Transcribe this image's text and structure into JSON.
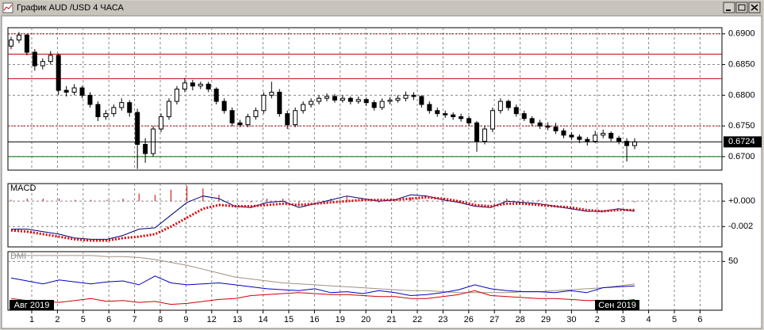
{
  "window": {
    "title": "График AUD /USD  4 ЧАСА"
  },
  "x_axis": {
    "categories": [
      "1",
      "2",
      "5",
      "6",
      "7",
      "8",
      "9",
      "12",
      "13",
      "14",
      "15",
      "16",
      "19",
      "20",
      "21",
      "22",
      "23",
      "26",
      "27",
      "28",
      "29",
      "30",
      "2",
      "3",
      "4",
      "5",
      "6"
    ],
    "months": [
      "Авг 2019",
      "Сен 2019"
    ]
  },
  "chart_data": [
    {
      "type": "candlestick",
      "ylim": [
        0.6678,
        0.691
      ],
      "yticks": [
        {
          "value": 0.69,
          "label": "0.6900"
        },
        {
          "value": 0.685,
          "label": "0.6850"
        },
        {
          "value": 0.68,
          "label": "0.6800"
        },
        {
          "value": 0.675,
          "label": "0.6750"
        },
        {
          "value": 0.67,
          "label": "0.6700"
        }
      ],
      "grid": true,
      "up_color": "#ffffff",
      "down_color": "#000000",
      "last_price": {
        "value": 0.6724,
        "label": "0.6724"
      },
      "levels": [
        {
          "value": 0.69,
          "color": "#b00000",
          "dash": true
        },
        {
          "value": 0.6867,
          "color": "#c00000",
          "dash": false
        },
        {
          "value": 0.6827,
          "color": "#c00000",
          "dash": false
        },
        {
          "value": 0.675,
          "color": "#c00000",
          "dash": true
        },
        {
          "value": 0.67,
          "color": "#007000",
          "dash": false
        }
      ],
      "ohlc": [
        [
          0.688,
          0.6895,
          0.6875,
          0.689
        ],
        [
          0.689,
          0.6903,
          0.6885,
          0.6898
        ],
        [
          0.6898,
          0.69,
          0.6865,
          0.687
        ],
        [
          0.687,
          0.6875,
          0.684,
          0.6848
        ],
        [
          0.6848,
          0.686,
          0.6842,
          0.6855
        ],
        [
          0.6855,
          0.6872,
          0.685,
          0.6865
        ],
        [
          0.6865,
          0.6868,
          0.68,
          0.6808
        ],
        [
          0.6808,
          0.6815,
          0.6798,
          0.6805
        ],
        [
          0.6805,
          0.6818,
          0.68,
          0.6812
        ],
        [
          0.6812,
          0.6815,
          0.6795,
          0.68
        ],
        [
          0.68,
          0.6805,
          0.678,
          0.6785
        ],
        [
          0.6785,
          0.679,
          0.6758,
          0.6765
        ],
        [
          0.6765,
          0.6776,
          0.676,
          0.677
        ],
        [
          0.677,
          0.6785,
          0.6765,
          0.678
        ],
        [
          0.678,
          0.6795,
          0.6775,
          0.6788
        ],
        [
          0.6788,
          0.6792,
          0.6765,
          0.6772
        ],
        [
          0.6772,
          0.6778,
          0.668,
          0.672
        ],
        [
          0.672,
          0.673,
          0.669,
          0.6705
        ],
        [
          0.6705,
          0.675,
          0.67,
          0.6745
        ],
        [
          0.6745,
          0.677,
          0.674,
          0.6765
        ],
        [
          0.6765,
          0.6795,
          0.676,
          0.679
        ],
        [
          0.679,
          0.6815,
          0.6785,
          0.681
        ],
        [
          0.681,
          0.6828,
          0.6805,
          0.682
        ],
        [
          0.682,
          0.6825,
          0.6808,
          0.6815
        ],
        [
          0.6815,
          0.6822,
          0.681,
          0.6818
        ],
        [
          0.6818,
          0.6822,
          0.6805,
          0.681
        ],
        [
          0.681,
          0.6813,
          0.6785,
          0.679
        ],
        [
          0.679,
          0.6795,
          0.677,
          0.6775
        ],
        [
          0.6775,
          0.678,
          0.675,
          0.6755
        ],
        [
          0.6755,
          0.676,
          0.6748,
          0.6752
        ],
        [
          0.6752,
          0.677,
          0.6748,
          0.6765
        ],
        [
          0.6765,
          0.678,
          0.676,
          0.6775
        ],
        [
          0.6775,
          0.6805,
          0.677,
          0.68
        ],
        [
          0.68,
          0.6822,
          0.6795,
          0.6805
        ],
        [
          0.6805,
          0.681,
          0.6765,
          0.677
        ],
        [
          0.677,
          0.6775,
          0.6745,
          0.6752
        ],
        [
          0.6752,
          0.678,
          0.6748,
          0.6775
        ],
        [
          0.6775,
          0.679,
          0.677,
          0.6785
        ],
        [
          0.6785,
          0.6795,
          0.678,
          0.679
        ],
        [
          0.679,
          0.68,
          0.6785,
          0.6795
        ],
        [
          0.6795,
          0.6803,
          0.679,
          0.6798
        ],
        [
          0.6798,
          0.6802,
          0.6788,
          0.6792
        ],
        [
          0.6792,
          0.68,
          0.6788,
          0.6795
        ],
        [
          0.6795,
          0.6798,
          0.6785,
          0.679
        ],
        [
          0.679,
          0.6798,
          0.6786,
          0.6793
        ],
        [
          0.6793,
          0.6796,
          0.6783,
          0.6788
        ],
        [
          0.6788,
          0.6792,
          0.6775,
          0.678
        ],
        [
          0.678,
          0.6795,
          0.6776,
          0.679
        ],
        [
          0.679,
          0.6797,
          0.6785,
          0.6792
        ],
        [
          0.6792,
          0.68,
          0.6788,
          0.6795
        ],
        [
          0.6795,
          0.6806,
          0.679,
          0.68
        ],
        [
          0.68,
          0.6805,
          0.6792,
          0.6798
        ],
        [
          0.6798,
          0.68,
          0.678,
          0.6785
        ],
        [
          0.6785,
          0.679,
          0.677,
          0.6775
        ],
        [
          0.6775,
          0.678,
          0.6765,
          0.677
        ],
        [
          0.677,
          0.6775,
          0.6763,
          0.6768
        ],
        [
          0.6768,
          0.6772,
          0.676,
          0.6765
        ],
        [
          0.6765,
          0.677,
          0.6757,
          0.6762
        ],
        [
          0.6762,
          0.6766,
          0.675,
          0.6755
        ],
        [
          0.6755,
          0.6758,
          0.6708,
          0.6725
        ],
        [
          0.6725,
          0.675,
          0.672,
          0.6745
        ],
        [
          0.6745,
          0.678,
          0.674,
          0.6775
        ],
        [
          0.6775,
          0.6795,
          0.677,
          0.679
        ],
        [
          0.679,
          0.6793,
          0.6775,
          0.678
        ],
        [
          0.678,
          0.6785,
          0.6765,
          0.677
        ],
        [
          0.677,
          0.6775,
          0.6758,
          0.6762
        ],
        [
          0.6762,
          0.6766,
          0.675,
          0.6755
        ],
        [
          0.6755,
          0.676,
          0.6745,
          0.675
        ],
        [
          0.675,
          0.6756,
          0.6743,
          0.6748
        ],
        [
          0.6748,
          0.6755,
          0.6737,
          0.6742
        ],
        [
          0.6742,
          0.6746,
          0.673,
          0.6735
        ],
        [
          0.6735,
          0.674,
          0.6727,
          0.6732
        ],
        [
          0.6732,
          0.6736,
          0.6722,
          0.6728
        ],
        [
          0.6728,
          0.6732,
          0.6718,
          0.6725
        ],
        [
          0.6725,
          0.6742,
          0.6722,
          0.6735
        ],
        [
          0.6735,
          0.6744,
          0.673,
          0.6738
        ],
        [
          0.6738,
          0.6741,
          0.6725,
          0.673
        ],
        [
          0.673,
          0.6734,
          0.672,
          0.6725
        ],
        [
          0.6725,
          0.673,
          0.6692,
          0.6718
        ],
        [
          0.6718,
          0.673,
          0.6712,
          0.6724
        ]
      ]
    },
    {
      "type": "macd",
      "title": "MACD",
      "ylim": [
        -0.0036,
        0.00138
      ],
      "yticks": [
        {
          "value": 0,
          "label": "+0.000"
        },
        {
          "value": -0.002,
          "label": "-0.002"
        }
      ],
      "grid": true,
      "histogram": {
        "color": "#d00000",
        "values": [
          0.0001,
          0.0002,
          0.0002,
          0.0002,
          0.0001,
          0.0001,
          0.0001,
          0.0002,
          0.0006,
          0.0005,
          0.0009,
          0.0012,
          0.001,
          0.0005,
          0.0,
          -0.0001,
          0.0002,
          0.0002,
          -0.0002,
          0.0,
          0.0002,
          0.0004,
          0.0001,
          -0.0001,
          0.0,
          0.0003,
          0.0001,
          -0.0001,
          -0.0001,
          -0.0001,
          -0.0001,
          0.0002,
          0.0001,
          0.0001,
          0.0,
          -0.0001,
          -0.0001,
          0.0,
          0.0001,
          -0.0001
        ]
      },
      "series": [
        {
          "color": "#000080",
          "dash": false,
          "values": [
            -0.0022,
            -0.0022,
            -0.0024,
            -0.0026,
            -0.0029,
            -0.003,
            -0.003,
            -0.0027,
            -0.0022,
            -0.0021,
            -0.0011,
            -0.0001,
            0.0004,
            0.0002,
            -0.0004,
            -0.0005,
            -0.0001,
            0.0,
            -0.0005,
            -0.0002,
            0.0001,
            0.0004,
            0.0002,
            0.0,
            0.0001,
            0.0005,
            0.0004,
            0.0001,
            -0.0001,
            -0.0004,
            -0.0005,
            0.0,
            -0.0001,
            -0.0002,
            -0.0004,
            -0.0006,
            -0.0008,
            -0.0008,
            -0.0006,
            -0.0008
          ]
        },
        {
          "color": "#e00000",
          "dash": true,
          "values": [
            -0.0023,
            -0.0024,
            -0.0026,
            -0.0028,
            -0.003,
            -0.0031,
            -0.0031,
            -0.0029,
            -0.0028,
            -0.0026,
            -0.002,
            -0.0013,
            -0.0006,
            -0.0003,
            -0.0004,
            -0.0004,
            -0.0003,
            -0.0002,
            -0.0003,
            -0.0002,
            -0.0001,
            0.0,
            0.0001,
            0.0001,
            0.0001,
            0.0002,
            0.0003,
            0.0002,
            0.0,
            -0.0003,
            -0.0004,
            -0.0002,
            -0.0002,
            -0.0003,
            -0.0004,
            -0.0005,
            -0.0007,
            -0.0008,
            -0.0007,
            -0.0007
          ]
        }
      ]
    },
    {
      "type": "dmi",
      "title": "DMI",
      "ylim": [
        0,
        60
      ],
      "yticks": [
        50
      ],
      "grid": true,
      "series": [
        {
          "color": "#a09080",
          "dash": false,
          "values": [
            56,
            56,
            56,
            56,
            56,
            56,
            55,
            55,
            54,
            52,
            49,
            46,
            42,
            38,
            34,
            32,
            30,
            28,
            27,
            26,
            25,
            24,
            23,
            22,
            21,
            20,
            20,
            19,
            18,
            18,
            18,
            18,
            19,
            19,
            20,
            21,
            22,
            23,
            25,
            27
          ]
        },
        {
          "color": "#0000c0",
          "dash": false,
          "values": [
            33,
            30,
            27,
            31,
            29,
            27,
            29,
            30,
            26,
            35,
            28,
            26,
            27,
            28,
            26,
            24,
            22,
            21,
            20,
            22,
            18,
            19,
            17,
            20,
            18,
            15,
            16,
            18,
            21,
            26,
            22,
            20,
            19,
            19,
            18,
            20,
            18,
            23,
            24,
            25
          ]
        },
        {
          "color": "#d00000",
          "dash": false,
          "values": [
            12,
            10,
            9,
            8,
            10,
            12,
            9,
            10,
            8,
            9,
            6,
            7,
            9,
            11,
            12,
            15,
            16,
            17,
            18,
            17,
            16,
            16,
            15,
            14,
            14,
            12,
            12,
            14,
            16,
            20,
            15,
            14,
            13,
            12,
            12,
            11,
            10,
            10,
            9,
            11
          ]
        }
      ]
    }
  ]
}
